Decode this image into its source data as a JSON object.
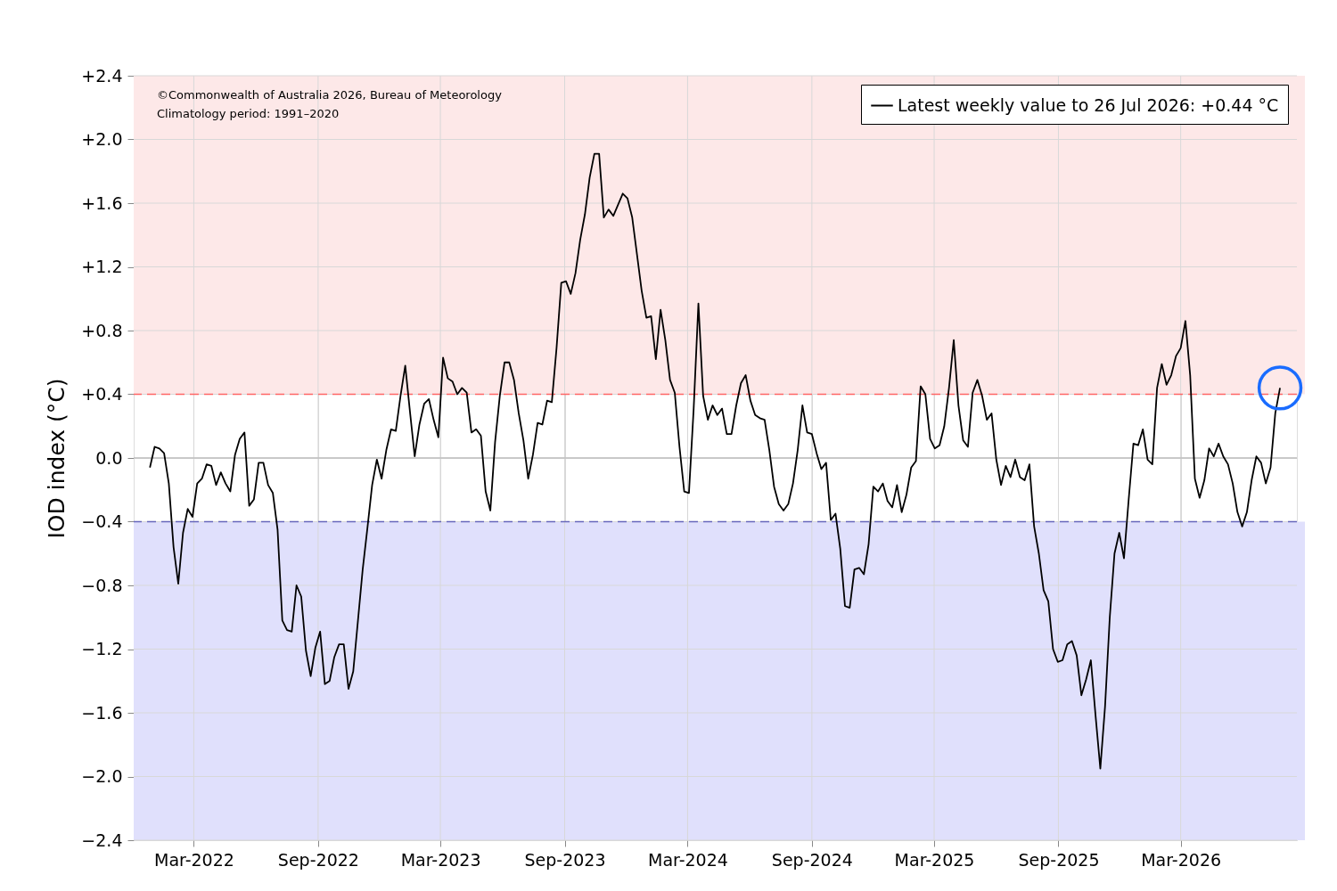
{
  "chart_data": {
    "type": "line",
    "ylabel": "IOD index (°C)",
    "annotations": [
      "©Commonwealth of Australia 2026, Bureau of Meteorology",
      "Climatology period: 1991–2020"
    ],
    "xlim": [
      "2021-12-02",
      "2026-08-20"
    ],
    "xticks": [
      {
        "value": "2022-03-01",
        "label": "Mar-2022"
      },
      {
        "value": "2022-09-01",
        "label": "Sep-2022"
      },
      {
        "value": "2023-03-01",
        "label": "Mar-2023"
      },
      {
        "value": "2023-09-01",
        "label": "Sep-2023"
      },
      {
        "value": "2024-03-01",
        "label": "Mar-2024"
      },
      {
        "value": "2024-09-01",
        "label": "Sep-2024"
      },
      {
        "value": "2025-03-01",
        "label": "Mar-2025"
      },
      {
        "value": "2025-09-01",
        "label": "Sep-2025"
      },
      {
        "value": "2026-03-01",
        "label": "Mar-2026"
      }
    ],
    "ylim": [
      -2.4,
      2.4
    ],
    "yticks": [
      {
        "value": -2.4,
        "label": "−2.4"
      },
      {
        "value": -2.0,
        "label": "−2.0"
      },
      {
        "value": -1.6,
        "label": "−1.6"
      },
      {
        "value": -1.2,
        "label": "−1.2"
      },
      {
        "value": -0.8,
        "label": "−0.8"
      },
      {
        "value": -0.4,
        "label": "−0.4"
      },
      {
        "value": 0.0,
        "label": "0.0"
      },
      {
        "value": 0.4,
        "label": "+0.4"
      },
      {
        "value": 0.8,
        "label": "+0.8"
      },
      {
        "value": 1.2,
        "label": "+1.2"
      },
      {
        "value": 1.6,
        "label": "+1.6"
      },
      {
        "value": 2.0,
        "label": "+2.0"
      },
      {
        "value": 2.4,
        "label": "+2.4"
      }
    ],
    "grid": true,
    "legend": "top right",
    "bands": [
      {
        "axis": "y",
        "from": 0.4,
        "to": 2.4,
        "color": "#fde8e8"
      },
      {
        "axis": "y",
        "from": -2.4,
        "to": -0.4,
        "color": "#e0e0fc"
      }
    ],
    "ref_lines": [
      {
        "axis": "y",
        "value": 0.4,
        "color": "#ff6666",
        "line_style": "dashed"
      },
      {
        "axis": "y",
        "value": -0.4,
        "color": "#6666bb",
        "line_style": "dashed"
      },
      {
        "axis": "y",
        "value": 0.0,
        "color": "#c0c0c0",
        "line_style": "solid"
      }
    ],
    "series": [
      {
        "name": "Latest weekly value to 26 Jul 2026: +0.44 °C",
        "color": "#000000",
        "line_style": "solid",
        "x": [
          "2021-12-26",
          "2022-01-02",
          "2022-01-09",
          "2022-01-16",
          "2022-01-23",
          "2022-01-30",
          "2022-02-06",
          "2022-02-13",
          "2022-02-20",
          "2022-02-27",
          "2022-03-06",
          "2022-03-13",
          "2022-03-20",
          "2022-03-27",
          "2022-04-03",
          "2022-04-10",
          "2022-04-17",
          "2022-04-24",
          "2022-05-01",
          "2022-05-08",
          "2022-05-15",
          "2022-05-22",
          "2022-05-29",
          "2022-06-05",
          "2022-06-12",
          "2022-06-19",
          "2022-06-26",
          "2022-07-03",
          "2022-07-10",
          "2022-07-17",
          "2022-07-24",
          "2022-07-31",
          "2022-08-07",
          "2022-08-14",
          "2022-08-21",
          "2022-08-28",
          "2022-09-04",
          "2022-09-11",
          "2022-09-18",
          "2022-09-25",
          "2022-10-02",
          "2022-10-09",
          "2022-10-16",
          "2022-10-23",
          "2022-10-30",
          "2022-11-06",
          "2022-11-13",
          "2022-11-20",
          "2022-11-27",
          "2022-12-04",
          "2022-12-11",
          "2022-12-18",
          "2022-12-25",
          "2023-01-01",
          "2023-01-08",
          "2023-01-15",
          "2023-01-22",
          "2023-01-29",
          "2023-02-05",
          "2023-02-12",
          "2023-02-19",
          "2023-02-26",
          "2023-03-05",
          "2023-03-12",
          "2023-03-19",
          "2023-03-26",
          "2023-04-02",
          "2023-04-09",
          "2023-04-16",
          "2023-04-23",
          "2023-04-30",
          "2023-05-07",
          "2023-05-14",
          "2023-05-21",
          "2023-05-28",
          "2023-06-04",
          "2023-06-11",
          "2023-06-18",
          "2023-06-25",
          "2023-07-02",
          "2023-07-09",
          "2023-07-16",
          "2023-07-23",
          "2023-07-30",
          "2023-08-06",
          "2023-08-13",
          "2023-08-20",
          "2023-08-27",
          "2023-09-03",
          "2023-09-10",
          "2023-09-17",
          "2023-09-24",
          "2023-10-01",
          "2023-10-08",
          "2023-10-15",
          "2023-10-22",
          "2023-10-29",
          "2023-11-05",
          "2023-11-12",
          "2023-11-19",
          "2023-11-26",
          "2023-12-03",
          "2023-12-10",
          "2023-12-17",
          "2023-12-24",
          "2023-12-31",
          "2024-01-07",
          "2024-01-14",
          "2024-01-21",
          "2024-01-28",
          "2024-02-04",
          "2024-02-11",
          "2024-02-18",
          "2024-02-25",
          "2024-03-03",
          "2024-03-10",
          "2024-03-17",
          "2024-03-24",
          "2024-03-31",
          "2024-04-07",
          "2024-04-14",
          "2024-04-21",
          "2024-04-28",
          "2024-05-05",
          "2024-05-12",
          "2024-05-19",
          "2024-05-26",
          "2024-06-02",
          "2024-06-09",
          "2024-06-16",
          "2024-06-23",
          "2024-06-30",
          "2024-07-07",
          "2024-07-14",
          "2024-07-21",
          "2024-07-28",
          "2024-08-04",
          "2024-08-11",
          "2024-08-18",
          "2024-08-25",
          "2024-09-01",
          "2024-09-08",
          "2024-09-15",
          "2024-09-22",
          "2024-09-29",
          "2024-10-06",
          "2024-10-13",
          "2024-10-20",
          "2024-10-27",
          "2024-11-03",
          "2024-11-10",
          "2024-11-17",
          "2024-11-24",
          "2024-12-01",
          "2024-12-08",
          "2024-12-15",
          "2024-12-22",
          "2024-12-29",
          "2025-01-05",
          "2025-01-12",
          "2025-01-19",
          "2025-01-26",
          "2025-02-02",
          "2025-02-09",
          "2025-02-16",
          "2025-02-23",
          "2025-03-02",
          "2025-03-09",
          "2025-03-16",
          "2025-03-23",
          "2025-03-30",
          "2025-04-06",
          "2025-04-13",
          "2025-04-20",
          "2025-04-27",
          "2025-05-04",
          "2025-05-11",
          "2025-05-18",
          "2025-05-25",
          "2025-06-01",
          "2025-06-08",
          "2025-06-15",
          "2025-06-22",
          "2025-06-29",
          "2025-07-06",
          "2025-07-13",
          "2025-07-20",
          "2025-07-27",
          "2025-08-03",
          "2025-08-10",
          "2025-08-17",
          "2025-08-24",
          "2025-08-31",
          "2025-09-07",
          "2025-09-14",
          "2025-09-21",
          "2025-09-28",
          "2025-10-05",
          "2025-10-12",
          "2025-10-19",
          "2025-10-26",
          "2025-11-02",
          "2025-11-09",
          "2025-11-16",
          "2025-11-23",
          "2025-11-30",
          "2025-12-07",
          "2025-12-14",
          "2025-12-21",
          "2025-12-28",
          "2026-01-04",
          "2026-01-11",
          "2026-01-18",
          "2026-01-25",
          "2026-02-01",
          "2026-02-08",
          "2026-02-15",
          "2026-02-22",
          "2026-03-01",
          "2026-03-08",
          "2026-03-15",
          "2026-03-22",
          "2026-03-29",
          "2026-04-05",
          "2026-04-12",
          "2026-04-19",
          "2026-04-26",
          "2026-05-03",
          "2026-05-10",
          "2026-05-17",
          "2026-05-24",
          "2026-05-31",
          "2026-06-07",
          "2026-06-14",
          "2026-06-21",
          "2026-06-28",
          "2026-07-05",
          "2026-07-12",
          "2026-07-19",
          "2026-07-26"
        ],
        "values": [
          -0.06,
          0.07,
          0.06,
          0.03,
          -0.16,
          -0.56,
          -0.79,
          -0.47,
          -0.32,
          -0.37,
          -0.16,
          -0.13,
          -0.04,
          -0.05,
          -0.17,
          -0.09,
          -0.16,
          -0.21,
          0.02,
          0.12,
          0.16,
          -0.3,
          -0.26,
          -0.03,
          -0.03,
          -0.17,
          -0.22,
          -0.45,
          -1.02,
          -1.08,
          -1.09,
          -0.8,
          -0.87,
          -1.21,
          -1.37,
          -1.19,
          -1.09,
          -1.42,
          -1.4,
          -1.25,
          -1.17,
          -1.17,
          -1.45,
          -1.34,
          -1.02,
          -0.7,
          -0.44,
          -0.17,
          -0.01,
          -0.13,
          0.05,
          0.18,
          0.17,
          0.39,
          0.58,
          0.29,
          0.01,
          0.21,
          0.34,
          0.37,
          0.24,
          0.13,
          0.63,
          0.5,
          0.48,
          0.4,
          0.44,
          0.41,
          0.16,
          0.18,
          0.14,
          -0.21,
          -0.33,
          0.1,
          0.39,
          0.6,
          0.6,
          0.49,
          0.28,
          0.11,
          -0.13,
          0.02,
          0.22,
          0.21,
          0.36,
          0.35,
          0.69,
          1.1,
          1.11,
          1.03,
          1.16,
          1.37,
          1.53,
          1.76,
          1.91,
          1.91,
          1.51,
          1.56,
          1.52,
          1.59,
          1.66,
          1.63,
          1.51,
          1.28,
          1.05,
          0.88,
          0.89,
          0.62,
          0.93,
          0.74,
          0.49,
          0.41,
          0.07,
          -0.21,
          -0.22,
          0.31,
          0.97,
          0.39,
          0.24,
          0.33,
          0.27,
          0.31,
          0.15,
          0.15,
          0.33,
          0.47,
          0.52,
          0.36,
          0.27,
          0.25,
          0.24,
          0.05,
          -0.18,
          -0.29,
          -0.33,
          -0.29,
          -0.16,
          0.05,
          0.33,
          0.16,
          0.15,
          0.03,
          -0.07,
          -0.03,
          -0.39,
          -0.35,
          -0.57,
          -0.93,
          -0.94,
          -0.7,
          -0.69,
          -0.73,
          -0.54,
          -0.18,
          -0.21,
          -0.16,
          -0.27,
          -0.31,
          -0.17,
          -0.34,
          -0.23,
          -0.06,
          -0.02,
          0.45,
          0.4,
          0.12,
          0.06,
          0.08,
          0.2,
          0.44,
          0.74,
          0.33,
          0.11,
          0.07,
          0.41,
          0.49,
          0.39,
          0.24,
          0.28,
          -0.01,
          -0.17,
          -0.05,
          -0.12,
          -0.01,
          -0.12,
          -0.14,
          -0.04,
          -0.43,
          -0.6,
          -0.83,
          -0.9,
          -1.2,
          -1.28,
          -1.27,
          -1.17,
          -1.15,
          -1.24,
          -1.49,
          -1.39,
          -1.27,
          -1.62,
          -1.95,
          -1.56,
          -1.0,
          -0.6,
          -0.47,
          -0.63,
          -0.26,
          0.09,
          0.08,
          0.18,
          -0.01,
          -0.04,
          0.44,
          0.59,
          0.46,
          0.52,
          0.64,
          0.69,
          0.86,
          0.52,
          -0.13,
          -0.25,
          -0.14,
          0.06,
          0.01,
          0.09,
          0.01,
          -0.04,
          -0.16,
          -0.34,
          -0.43,
          -0.34,
          -0.14,
          0.01,
          -0.03,
          -0.16,
          -0.06,
          0.28,
          0.44
        ]
      },
      {
        "type": "scatter",
        "marker": "circle",
        "color": "#1a6cff",
        "x": [
          "2026-07-26"
        ],
        "values": [
          0.44
        ]
      }
    ]
  }
}
